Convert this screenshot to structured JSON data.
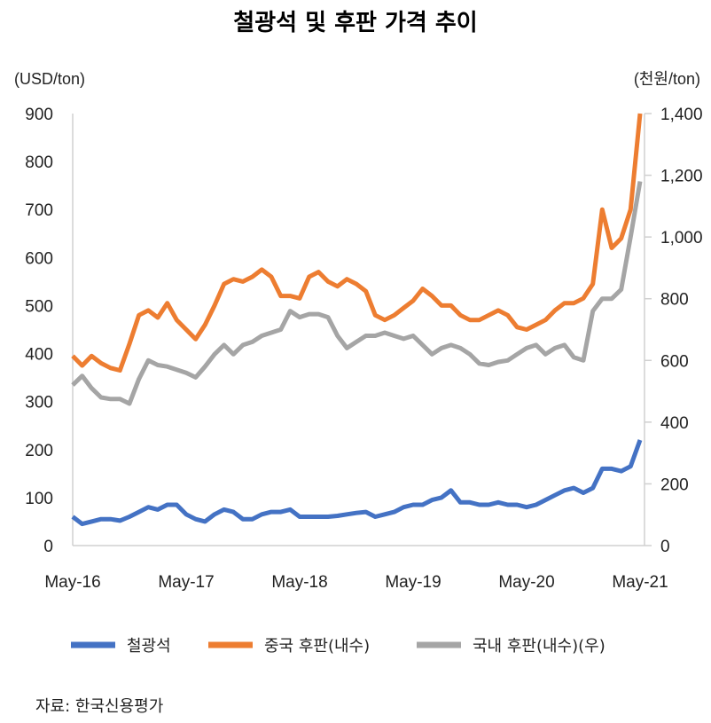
{
  "chart_data": {
    "type": "line",
    "title": "철광석 및 후판 가격 추이",
    "ylabel_left": "(USD/ton)",
    "ylabel_right": "(천원/ton)",
    "ylim_left": [
      0,
      900
    ],
    "ylim_right": [
      0,
      1400
    ],
    "yticks_left": [
      "0",
      "100",
      "200",
      "300",
      "400",
      "500",
      "600",
      "700",
      "800",
      "900"
    ],
    "yticks_left_values": [
      0,
      100,
      200,
      300,
      400,
      500,
      600,
      700,
      800,
      900
    ],
    "yticks_right": [
      "0",
      "200",
      "400",
      "600",
      "800",
      "1,000",
      "1,200",
      "1,400"
    ],
    "yticks_right_values": [
      0,
      200,
      400,
      600,
      800,
      1000,
      1200,
      1400
    ],
    "xticks": [
      "May-16",
      "May-17",
      "May-18",
      "May-19",
      "May-20",
      "May-21"
    ],
    "x_note": "monthly, May-16 to May-21",
    "grid": false,
    "legend_position": "bottom",
    "series": [
      {
        "name": "철광석",
        "axis": "left",
        "color": "#4472C4",
        "values": [
          60,
          45,
          50,
          55,
          55,
          52,
          60,
          70,
          80,
          75,
          85,
          85,
          65,
          55,
          50,
          65,
          75,
          70,
          55,
          55,
          65,
          70,
          70,
          75,
          60,
          60,
          60,
          60,
          62,
          65,
          68,
          70,
          60,
          65,
          70,
          80,
          85,
          85,
          95,
          100,
          115,
          90,
          90,
          85,
          85,
          90,
          85,
          85,
          80,
          85,
          95,
          105,
          115,
          120,
          110,
          120,
          160,
          160,
          155,
          165,
          220
        ]
      },
      {
        "name": "중국 후판(내수)",
        "axis": "left",
        "color": "#ED7D31",
        "values": [
          395,
          375,
          395,
          380,
          370,
          365,
          420,
          480,
          490,
          475,
          505,
          470,
          450,
          430,
          460,
          500,
          545,
          555,
          550,
          560,
          575,
          560,
          520,
          520,
          515,
          560,
          570,
          550,
          540,
          555,
          545,
          530,
          480,
          470,
          480,
          495,
          510,
          535,
          520,
          500,
          500,
          480,
          470,
          470,
          480,
          490,
          480,
          455,
          450,
          460,
          470,
          490,
          505,
          505,
          515,
          545,
          700,
          620,
          640,
          700,
          900
        ]
      },
      {
        "name": "국내 후판(내수)(우)",
        "axis": "right",
        "color": "#A5A5A5",
        "values": [
          520,
          550,
          510,
          480,
          475,
          475,
          460,
          540,
          600,
          585,
          580,
          570,
          560,
          545,
          580,
          620,
          650,
          620,
          650,
          660,
          680,
          690,
          700,
          760,
          740,
          750,
          750,
          740,
          680,
          640,
          660,
          680,
          680,
          690,
          680,
          670,
          680,
          650,
          620,
          640,
          650,
          640,
          620,
          590,
          585,
          595,
          600,
          620,
          640,
          650,
          620,
          640,
          650,
          610,
          600,
          760,
          800,
          800,
          830,
          1000,
          1180
        ]
      }
    ]
  },
  "source": "자료: 한국신용평가"
}
